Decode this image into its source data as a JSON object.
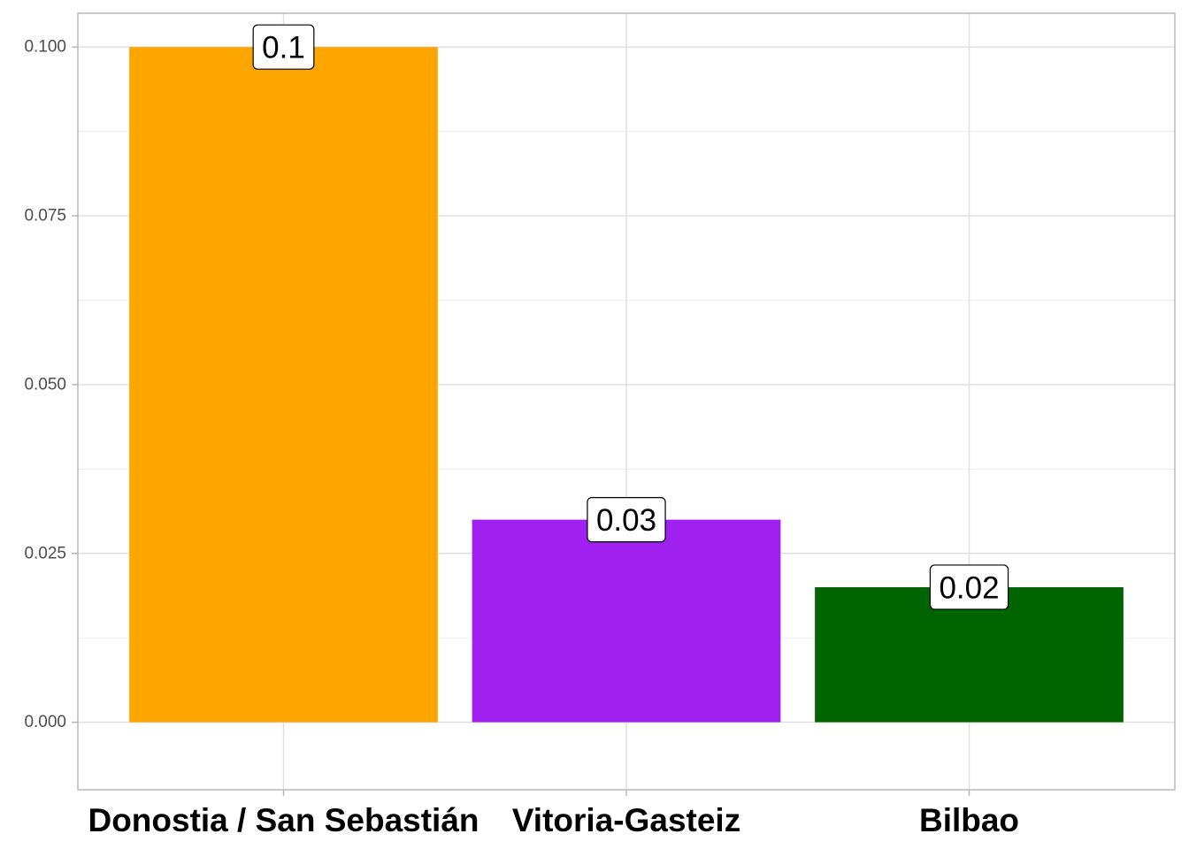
{
  "chart_data": {
    "type": "bar",
    "title": "",
    "xlabel": "",
    "ylabel": "",
    "categories": [
      "Donostia / San Sebastián",
      "Vitoria-Gasteiz",
      "Bilbao"
    ],
    "values": [
      0.1,
      0.03,
      0.02
    ],
    "data_labels": [
      "0.1",
      "0.03",
      "0.02"
    ],
    "bar_colors": [
      "#FFA500",
      "#A020F0",
      "#006400"
    ],
    "ylim": [
      -0.01,
      0.105
    ],
    "yticks": [
      0,
      0.025,
      0.05,
      0.075,
      0.1
    ],
    "ytick_labels": [
      "0.000",
      "0.025",
      "0.050",
      "0.075",
      "0.100"
    ],
    "grid": true,
    "legend": "none"
  }
}
